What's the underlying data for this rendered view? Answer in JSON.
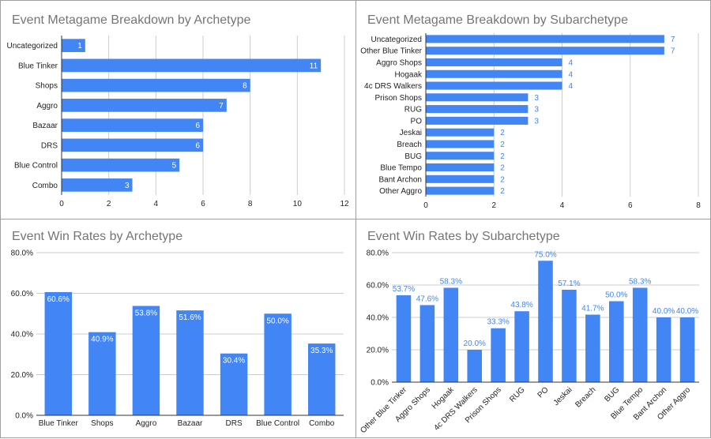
{
  "colors": {
    "bar": "#4285f4",
    "grid": "#cccccc",
    "title": "#757575",
    "label_outside": "#4285f4"
  },
  "chart_data": [
    {
      "type": "bar",
      "orientation": "horizontal",
      "title": "Event Metagame Breakdown by Archetype",
      "categories": [
        "Uncategorized",
        "Blue Tinker",
        "Shops",
        "Aggro",
        "Bazaar",
        "DRS",
        "Blue Control",
        "Combo"
      ],
      "values": [
        1,
        11,
        8,
        7,
        6,
        6,
        5,
        3
      ],
      "xlim": [
        0,
        12
      ],
      "xticks": [
        "0",
        "2",
        "4",
        "6",
        "8",
        "10",
        "12"
      ],
      "grid": true,
      "data_labels": true
    },
    {
      "type": "bar",
      "orientation": "horizontal",
      "title": "Event Metagame Breakdown by Subarchetype",
      "categories": [
        "Uncategorized",
        "Other Blue Tinker",
        "Aggro Shops",
        "Hogaak",
        "4c DRS Walkers",
        "Prison Shops",
        "RUG",
        "PO",
        "Jeskai",
        "Breach",
        "BUG",
        "Blue Tempo",
        "Bant Archon",
        "Other Aggro"
      ],
      "values": [
        7,
        7,
        4,
        4,
        4,
        3,
        3,
        3,
        2,
        2,
        2,
        2,
        2,
        2
      ],
      "xlim": [
        0,
        8
      ],
      "xticks": [
        "0",
        "2",
        "4",
        "6",
        "8"
      ],
      "grid": true,
      "data_labels": true
    },
    {
      "type": "bar",
      "orientation": "vertical",
      "title": "Event Win Rates by Archetype",
      "categories": [
        "Blue Tinker",
        "Shops",
        "Aggro",
        "Bazaar",
        "DRS",
        "Blue Control",
        "Combo"
      ],
      "values": [
        60.6,
        40.9,
        53.8,
        51.6,
        30.4,
        50.0,
        35.3
      ],
      "labels": [
        "60.6%",
        "40.9%",
        "53.8%",
        "51.6%",
        "30.4%",
        "50.0%",
        "35.3%"
      ],
      "ylim": [
        0,
        80
      ],
      "yticks": [
        "0.0%",
        "20.0%",
        "40.0%",
        "60.0%",
        "80.0%"
      ],
      "grid": true,
      "data_labels": true
    },
    {
      "type": "bar",
      "orientation": "vertical",
      "title": "Event Win Rates by Subarchetype",
      "categories": [
        "Other Blue Tinker",
        "Aggro Shops",
        "Hogaak",
        "4c DRS Walkers",
        "Prison Shops",
        "RUG",
        "PO",
        "Jeskai",
        "Breach",
        "BUG",
        "Blue Tempo",
        "Bant Archon",
        "Other Aggro"
      ],
      "values": [
        53.7,
        47.6,
        58.3,
        20.0,
        33.3,
        43.8,
        75.0,
        57.1,
        41.7,
        50.0,
        58.3,
        40.0,
        40.0
      ],
      "labels": [
        "53.7%",
        "47.6%",
        "58.3%",
        "20.0%",
        "33.3%",
        "43.8%",
        "75.0%",
        "57.1%",
        "41.7%",
        "50.0%",
        "58.3%",
        "40.0%",
        "40.0%"
      ],
      "ylim": [
        0,
        80
      ],
      "yticks": [
        "0.0%",
        "20.0%",
        "40.0%",
        "60.0%",
        "80.0%"
      ],
      "grid": true,
      "data_labels": true
    }
  ]
}
